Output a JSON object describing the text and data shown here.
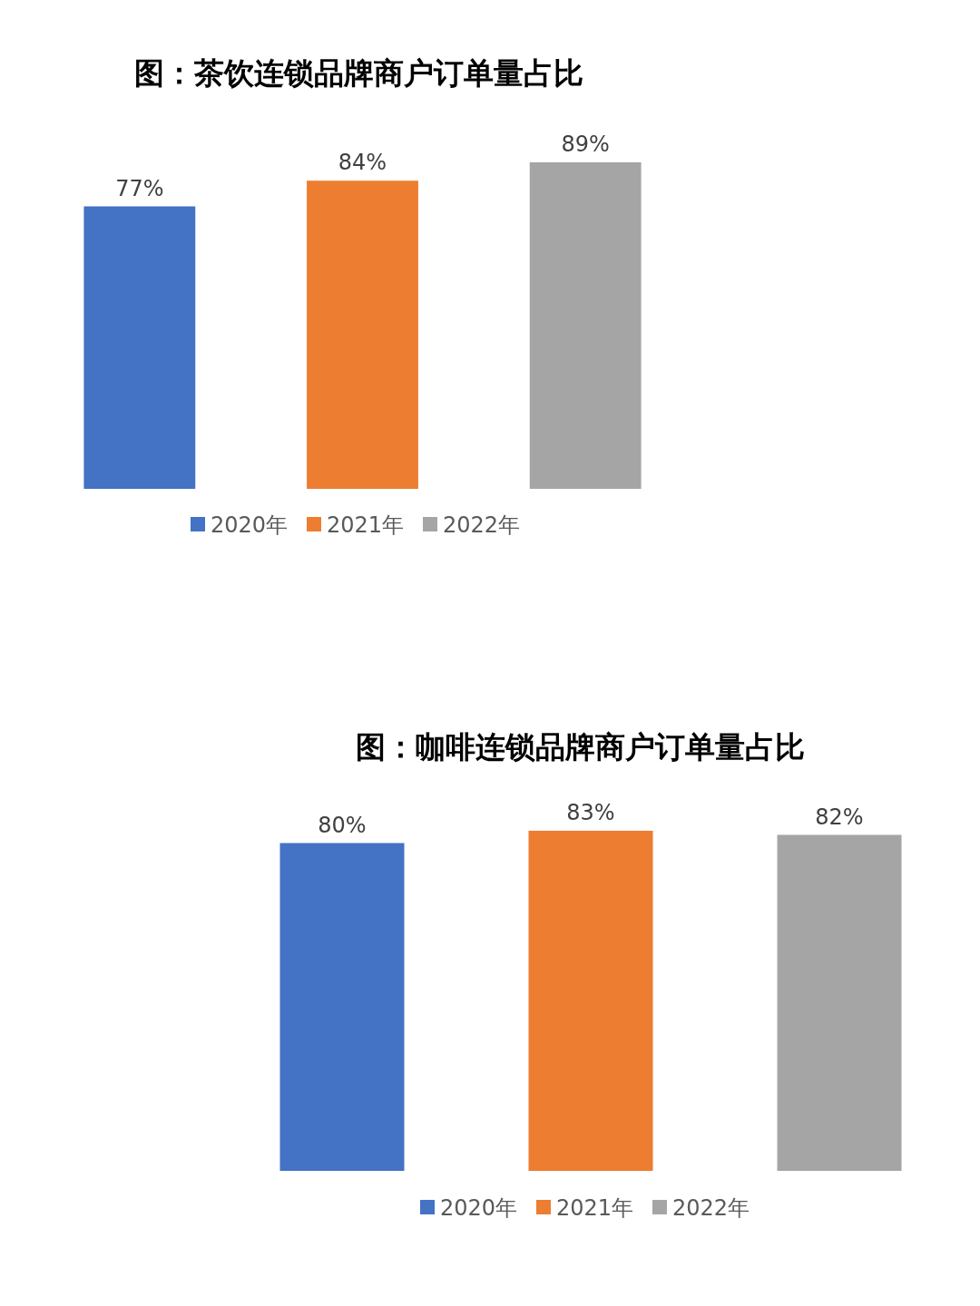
{
  "chart_data": [
    {
      "type": "bar",
      "title": "图：茶饮连锁品牌商户订单量占比",
      "categories": [
        null,
        null,
        null
      ],
      "values": [
        77,
        84,
        89
      ],
      "colors": [
        "#4472c4",
        "#ed7d31",
        "#a5a5a5"
      ],
      "value_labels": [
        "77%",
        "84%",
        "89%"
      ],
      "annotations": [
        "2020年",
        "2021年",
        "2022年"
      ]
    },
    {
      "type": "bar",
      "title": "图：咖啡连锁品牌商户订单量占比",
      "categories": [
        null,
        null,
        null
      ],
      "values": [
        80,
        83,
        82
      ],
      "colors": [
        "#4472c4",
        "#ed7d31",
        "#a5a5a5"
      ],
      "value_labels": [
        "80%",
        "83%",
        "82%"
      ],
      "annotations": [
        "2020年",
        "2021年",
        "2022年"
      ]
    }
  ]
}
